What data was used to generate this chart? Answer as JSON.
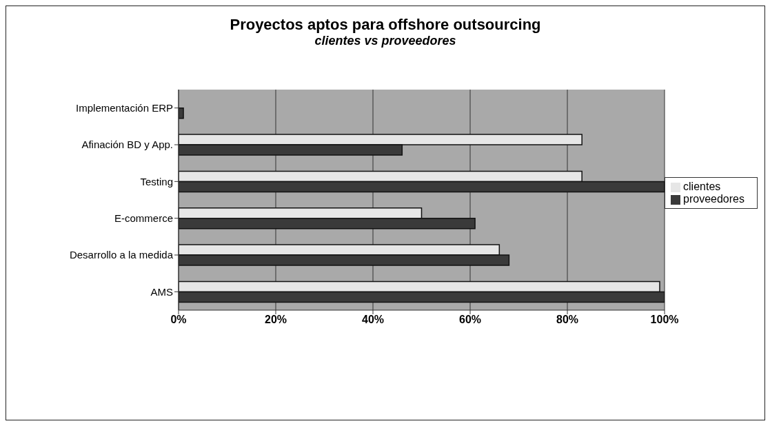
{
  "chart_data": {
    "type": "bar",
    "orientation": "horizontal",
    "title": "Proyectos aptos para offshore outsourcing",
    "subtitle": "clientes vs proveedores",
    "categories": [
      "Implementación ERP",
      "Afinación  BD y App.",
      "Testing",
      "E-commerce",
      "Desarrollo a la medida",
      "AMS"
    ],
    "series": [
      {
        "name": "clientes",
        "color": "#e6e6e6",
        "values": [
          0,
          83,
          83,
          50,
          66,
          99
        ]
      },
      {
        "name": "proveedores",
        "color": "#3a3a3a",
        "values": [
          1,
          46,
          100,
          61,
          68,
          100
        ]
      }
    ],
    "xlim": [
      0,
      100
    ],
    "xticks": [
      {
        "value": 0,
        "label": "0%"
      },
      {
        "value": 20,
        "label": "20%"
      },
      {
        "value": 40,
        "label": "40%"
      },
      {
        "value": 60,
        "label": "60%"
      },
      {
        "value": 80,
        "label": "80%"
      },
      {
        "value": 100,
        "label": "100%"
      }
    ],
    "grid": "x",
    "legend": "right"
  }
}
